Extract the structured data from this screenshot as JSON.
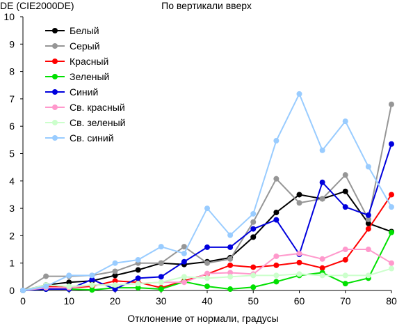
{
  "chart_data": {
    "type": "line",
    "title": "По вертикали вверх",
    "ylabel": "DE (CIE2000DE)",
    "xlabel": "Отклонение от нормали, градусы",
    "x": [
      0,
      5,
      10,
      15,
      20,
      25,
      30,
      35,
      40,
      45,
      50,
      55,
      60,
      65,
      70,
      75,
      80
    ],
    "xlim": [
      0,
      80
    ],
    "ylim": [
      0,
      10
    ],
    "xticks": [
      0,
      10,
      20,
      30,
      40,
      50,
      60,
      70,
      80
    ],
    "yticks": [
      0,
      1,
      2,
      3,
      4,
      5,
      6,
      7,
      8,
      9,
      10
    ],
    "grid": false,
    "legend_position": "top-left",
    "series": [
      {
        "name": "Белый",
        "color": "#000000",
        "values": [
          0,
          0.2,
          0.3,
          0.35,
          0.55,
          0.75,
          1.0,
          0.95,
          1.05,
          1.2,
          1.95,
          2.85,
          3.5,
          3.35,
          3.62,
          2.45,
          2.15
        ]
      },
      {
        "name": "Серый",
        "color": "#969696",
        "values": [
          0,
          0.52,
          0.52,
          0.55,
          0.7,
          1.0,
          1.0,
          1.6,
          1.0,
          1.15,
          2.5,
          4.08,
          3.2,
          3.35,
          4.22,
          2.6,
          6.8
        ]
      },
      {
        "name": "Красный",
        "color": "#ff0000",
        "values": [
          0,
          0.15,
          0.1,
          0.15,
          0.35,
          0.3,
          0.1,
          0.35,
          0.6,
          0.92,
          0.85,
          0.92,
          1.02,
          0.82,
          1.12,
          2.25,
          3.5
        ]
      },
      {
        "name": "Зеленый",
        "color": "#00e000",
        "values": [
          0,
          0.05,
          0.05,
          0.02,
          0.1,
          0.1,
          0.05,
          0.32,
          0.15,
          0.05,
          0.12,
          0.32,
          0.55,
          0.65,
          0.25,
          0.45,
          2.12
        ]
      },
      {
        "name": "Синий",
        "color": "#0000dd",
        "values": [
          0,
          0.05,
          0.05,
          0.4,
          0.05,
          0.45,
          0.5,
          1.05,
          1.58,
          1.58,
          2.25,
          2.58,
          1.32,
          3.95,
          3.05,
          2.75,
          5.35
        ]
      },
      {
        "name": "Св. красный",
        "color": "#ff99cc",
        "values": [
          0,
          0.1,
          0.1,
          0.2,
          0.2,
          0.25,
          0.3,
          0.3,
          0.62,
          0.65,
          0.6,
          1.25,
          1.35,
          1.15,
          1.5,
          1.5,
          1.0
        ]
      },
      {
        "name": "Св. зеленый",
        "color": "#ccffcc",
        "values": [
          0,
          0.2,
          0.15,
          0.2,
          0.2,
          0.25,
          0.3,
          0.5,
          0.45,
          0.5,
          0.55,
          0.55,
          0.6,
          0.55,
          0.55,
          0.55,
          0.8
        ]
      },
      {
        "name": "Св. синий",
        "color": "#99ccff",
        "values": [
          0,
          0.15,
          0.55,
          0.55,
          1.0,
          1.12,
          1.6,
          1.35,
          3.0,
          2.02,
          2.8,
          5.47,
          7.18,
          5.12,
          6.18,
          4.52,
          3.05
        ]
      }
    ]
  }
}
